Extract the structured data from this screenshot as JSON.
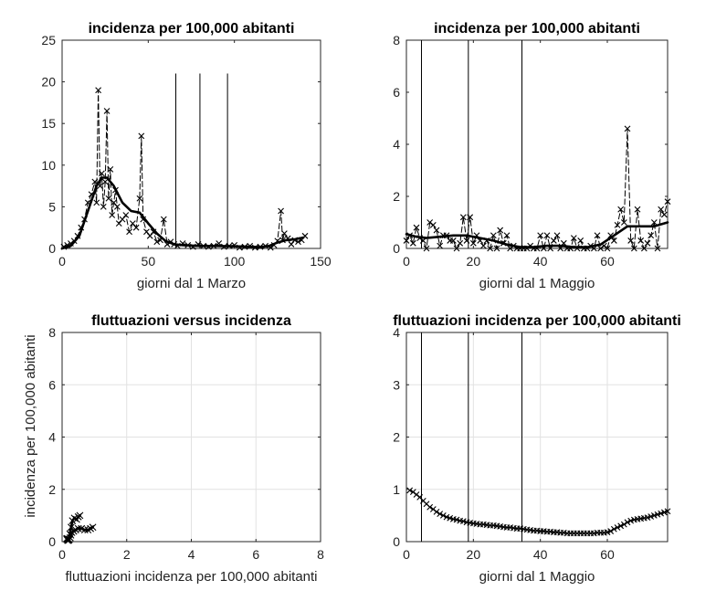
{
  "chart_data": [
    {
      "id": "p1",
      "type": "line",
      "title": "incidenza per 100,000 abitanti",
      "xlabel": "giorni dal 1 Marzo",
      "ylabel": "",
      "xlim": [
        0,
        150
      ],
      "ylim": [
        0,
        25
      ],
      "xticks": [
        0,
        50,
        100,
        150
      ],
      "yticks": [
        0,
        5,
        10,
        15,
        20,
        25
      ],
      "grid": false,
      "vlines": [
        {
          "x": 66,
          "y": [
            0,
            21
          ]
        },
        {
          "x": 80,
          "y": [
            0,
            21
          ]
        },
        {
          "x": 96,
          "y": [
            0,
            21
          ]
        }
      ],
      "series": [
        {
          "style": "dashed-x",
          "x": [
            1,
            3,
            5,
            7,
            9,
            11,
            13,
            15,
            17,
            19,
            20,
            21,
            22,
            23,
            24,
            25,
            26,
            27,
            28,
            29,
            30,
            31,
            32,
            33,
            35,
            37,
            39,
            41,
            43,
            45,
            46,
            47,
            49,
            51,
            53,
            55,
            57,
            59,
            61,
            63,
            65,
            67,
            70,
            73,
            76,
            79,
            82,
            85,
            88,
            91,
            94,
            97,
            100,
            103,
            106,
            109,
            112,
            115,
            118,
            121,
            123,
            125,
            127,
            128,
            129,
            131,
            133,
            135,
            137,
            139,
            141
          ],
          "y": [
            0.2,
            0.4,
            0.6,
            0.9,
            1.5,
            2.5,
            3.5,
            5.5,
            6.5,
            8.0,
            5.5,
            19.0,
            7.5,
            9.0,
            5.0,
            8.0,
            16.5,
            6.0,
            9.5,
            4.0,
            5.5,
            7.0,
            5.0,
            3.0,
            3.5,
            4.0,
            2.0,
            3.0,
            2.5,
            6.0,
            13.5,
            3.5,
            2.0,
            1.5,
            2.0,
            0.8,
            1.0,
            3.5,
            0.5,
            0.8,
            0.5,
            0.3,
            0.6,
            0.4,
            0.2,
            0.5,
            0.3,
            0.2,
            0.3,
            0.6,
            0.2,
            0.3,
            0.4,
            0.1,
            0.2,
            0.3,
            0.1,
            0.2,
            0.3,
            0.1,
            0.4,
            0.9,
            4.5,
            1.0,
            1.8,
            1.2,
            0.5,
            1.0,
            0.8,
            1.0,
            1.5
          ]
        },
        {
          "style": "solid-thick",
          "x": [
            0,
            5,
            10,
            15,
            20,
            23,
            26,
            30,
            35,
            40,
            45,
            50,
            55,
            60,
            65,
            70,
            80,
            90,
            100,
            110,
            115,
            120,
            125,
            130,
            135,
            140
          ],
          "y": [
            0,
            0.3,
            1.5,
            4.5,
            7.5,
            8.5,
            8.5,
            7.5,
            5.5,
            4.5,
            4.3,
            3.0,
            1.8,
            0.9,
            0.5,
            0.4,
            0.3,
            0.3,
            0.25,
            0.2,
            0.15,
            0.3,
            0.7,
            1.0,
            1.1,
            1.3
          ]
        }
      ]
    },
    {
      "id": "p2",
      "type": "line",
      "title": "incidenza per 100,000 abitanti",
      "xlabel": "giorni dal 1 Maggio",
      "ylabel": "",
      "xlim": [
        0,
        78
      ],
      "ylim": [
        0,
        8
      ],
      "xticks": [
        0,
        20,
        40,
        60
      ],
      "yticks": [
        0,
        2,
        4,
        6,
        8
      ],
      "grid": false,
      "vlines": [
        {
          "x": 4.5,
          "y": [
            0,
            8
          ]
        },
        {
          "x": 18.5,
          "y": [
            0,
            8
          ]
        },
        {
          "x": 34.5,
          "y": [
            0,
            8
          ]
        }
      ],
      "series": [
        {
          "style": "dashed-x",
          "x": [
            0,
            1,
            2,
            3,
            4,
            5,
            6,
            7,
            8,
            9,
            10,
            11,
            12,
            13,
            14,
            15,
            16,
            17,
            18,
            19,
            20,
            21,
            22,
            23,
            24,
            25,
            26,
            27,
            28,
            29,
            30,
            31,
            32,
            33,
            34,
            35,
            36,
            37,
            38,
            39,
            40,
            41,
            42,
            43,
            44,
            45,
            46,
            47,
            48,
            49,
            50,
            51,
            52,
            53,
            54,
            55,
            56,
            57,
            58,
            59,
            60,
            61,
            62,
            63,
            64,
            65,
            66,
            67,
            68,
            69,
            70,
            71,
            72,
            73,
            74,
            75,
            76,
            77,
            78
          ],
          "y": [
            0.3,
            0.5,
            0.2,
            0.8,
            0.4,
            0.3,
            0.0,
            1.0,
            0.9,
            0.7,
            0.1,
            0.5,
            0.5,
            0.3,
            0.3,
            0.0,
            0.2,
            1.2,
            0.3,
            1.2,
            0.2,
            0.5,
            0.3,
            0.1,
            0.3,
            0.0,
            0.5,
            0.0,
            0.7,
            0.2,
            0.5,
            0.0,
            0.1,
            0.0,
            0.0,
            0.0,
            0.0,
            0.1,
            0.0,
            0.0,
            0.5,
            0.0,
            0.5,
            0.0,
            0.3,
            0.5,
            0.0,
            0.2,
            0.0,
            0.0,
            0.4,
            0.0,
            0.3,
            0.0,
            0.0,
            0.1,
            0.0,
            0.5,
            0.0,
            0.1,
            0.0,
            0.5,
            0.3,
            0.9,
            1.5,
            1.0,
            4.6,
            0.3,
            0.0,
            1.5,
            0.3,
            0.0,
            0.2,
            0.5,
            1.0,
            0.0,
            1.5,
            1.3,
            1.8
          ]
        },
        {
          "style": "solid-thick",
          "x": [
            0,
            3,
            6,
            10,
            14,
            18,
            22,
            26,
            30,
            34,
            38,
            42,
            46,
            50,
            54,
            58,
            62,
            66,
            70,
            74,
            78
          ],
          "y": [
            0.55,
            0.45,
            0.4,
            0.45,
            0.5,
            0.5,
            0.4,
            0.3,
            0.15,
            0.05,
            0.05,
            0.1,
            0.1,
            0.05,
            0.05,
            0.15,
            0.5,
            0.85,
            0.85,
            0.85,
            1.0
          ]
        }
      ]
    },
    {
      "id": "p3",
      "type": "line",
      "title": "fluttuazioni versus incidenza",
      "xlabel": "fluttuazioni incidenza per 100,000 abitanti",
      "ylabel": "incidenza per 100,000 abitanti",
      "xlim": [
        0,
        8
      ],
      "ylim": [
        0,
        8
      ],
      "xticks": [
        0,
        2,
        4,
        6,
        8
      ],
      "yticks": [
        0,
        2,
        4,
        6,
        8
      ],
      "grid": true,
      "series": [
        {
          "style": "solid-thick-x",
          "x": [
            0.95,
            0.88,
            0.8,
            0.7,
            0.6,
            0.5,
            0.42,
            0.36,
            0.3,
            0.27,
            0.25,
            0.22,
            0.2,
            0.18,
            0.16,
            0.15,
            0.14,
            0.15,
            0.17,
            0.2,
            0.24,
            0.28,
            0.32,
            0.38,
            0.45,
            0.5,
            0.55
          ],
          "y": [
            0.55,
            0.5,
            0.45,
            0.45,
            0.5,
            0.5,
            0.45,
            0.4,
            0.35,
            0.25,
            0.15,
            0.08,
            0.05,
            0.05,
            0.1,
            0.12,
            0.1,
            0.1,
            0.05,
            0.1,
            0.3,
            0.55,
            0.8,
            0.9,
            0.85,
            0.95,
            1.0
          ]
        }
      ]
    },
    {
      "id": "p4",
      "type": "line",
      "title": "fluttuazioni incidenza per 100,000 abitanti",
      "xlabel": "giorni dal 1 Maggio",
      "ylabel": "",
      "xlim": [
        0,
        78
      ],
      "ylim": [
        0,
        4
      ],
      "xticks": [
        0,
        20,
        40,
        60
      ],
      "yticks": [
        0,
        1,
        2,
        3,
        4
      ],
      "grid": true,
      "vlines": [
        {
          "x": 4.5,
          "y": [
            0,
            4
          ]
        },
        {
          "x": 18.5,
          "y": [
            0,
            4
          ]
        },
        {
          "x": 34.5,
          "y": [
            0,
            4
          ]
        }
      ],
      "series": [
        {
          "style": "solid-x",
          "x": [
            1,
            2,
            3,
            4,
            5,
            6,
            7,
            8,
            9,
            10,
            11,
            12,
            13,
            14,
            15,
            16,
            17,
            18,
            19,
            20,
            21,
            22,
            23,
            24,
            25,
            26,
            27,
            28,
            29,
            30,
            31,
            32,
            33,
            34,
            35,
            36,
            37,
            38,
            39,
            40,
            41,
            42,
            43,
            44,
            45,
            46,
            47,
            48,
            49,
            50,
            51,
            52,
            53,
            54,
            55,
            56,
            57,
            58,
            59,
            60,
            61,
            62,
            63,
            64,
            65,
            66,
            67,
            68,
            69,
            70,
            71,
            72,
            73,
            74,
            75,
            76,
            77,
            78
          ],
          "y": [
            0.98,
            0.95,
            0.9,
            0.85,
            0.78,
            0.72,
            0.66,
            0.62,
            0.57,
            0.53,
            0.5,
            0.47,
            0.45,
            0.43,
            0.42,
            0.4,
            0.39,
            0.37,
            0.36,
            0.35,
            0.34,
            0.33,
            0.33,
            0.32,
            0.31,
            0.31,
            0.3,
            0.29,
            0.28,
            0.27,
            0.27,
            0.26,
            0.25,
            0.25,
            0.24,
            0.23,
            0.22,
            0.21,
            0.21,
            0.2,
            0.2,
            0.19,
            0.19,
            0.18,
            0.18,
            0.17,
            0.17,
            0.16,
            0.16,
            0.16,
            0.16,
            0.16,
            0.16,
            0.16,
            0.16,
            0.16,
            0.17,
            0.17,
            0.17,
            0.18,
            0.2,
            0.24,
            0.27,
            0.3,
            0.33,
            0.37,
            0.4,
            0.42,
            0.43,
            0.44,
            0.45,
            0.46,
            0.48,
            0.5,
            0.52,
            0.54,
            0.56,
            0.58
          ]
        }
      ]
    }
  ]
}
